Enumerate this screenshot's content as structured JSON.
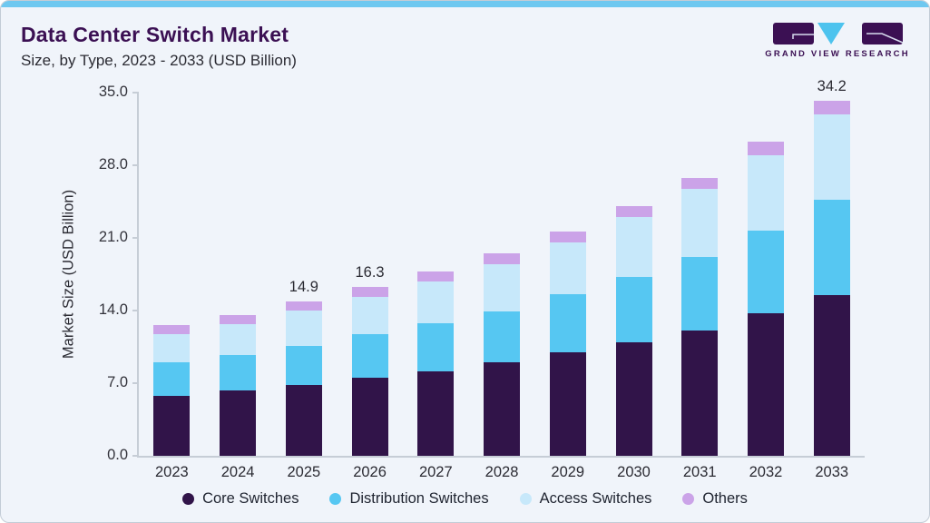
{
  "header": {
    "title": "Data Center Switch Market",
    "subtitle": "Size, by Type, 2023 - 2033 (USD Billion)",
    "logo_text": "GRAND VIEW RESEARCH",
    "logo_name": "grand-view-research-logo"
  },
  "colors": {
    "accent_strip": "#6ec8f0",
    "title_purple": "#3b1053",
    "card_bg": "#f0f4fa",
    "axis_line": "#c6cdd6",
    "text_dark": "#2b2b33",
    "logo_triangle": "#4dc3ee"
  },
  "chart_data": {
    "type": "bar",
    "stacked": true,
    "title": "Data Center Switch Market Size, by Type, 2023 - 2033 (USD Billion)",
    "categories": [
      "2023",
      "2024",
      "2025",
      "2026",
      "2027",
      "2028",
      "2029",
      "2030",
      "2031",
      "2032",
      "2033"
    ],
    "series": [
      {
        "name": "Core Switches",
        "color": "#311449",
        "values": [
          5.8,
          6.3,
          6.8,
          7.5,
          8.1,
          9.0,
          10.0,
          10.9,
          12.1,
          13.7,
          15.5
        ]
      },
      {
        "name": "Distribution Switches",
        "color": "#56c7f2",
        "values": [
          3.2,
          3.4,
          3.8,
          4.2,
          4.7,
          4.9,
          5.6,
          6.3,
          7.1,
          8.0,
          9.2
        ]
      },
      {
        "name": "Access Switches",
        "color": "#c7e8fa",
        "values": [
          2.7,
          3.0,
          3.4,
          3.6,
          4.0,
          4.6,
          5.0,
          5.8,
          6.5,
          7.3,
          8.2
        ]
      },
      {
        "name": "Others",
        "color": "#cba3e8",
        "values": [
          0.9,
          0.9,
          0.9,
          1.0,
          1.0,
          1.0,
          1.0,
          1.1,
          1.1,
          1.3,
          1.3
        ]
      }
    ],
    "totals": [
      12.6,
      13.6,
      14.9,
      16.3,
      17.8,
      19.5,
      21.6,
      24.1,
      26.8,
      30.3,
      34.2
    ],
    "value_labels": {
      "2025": "14.9",
      "2026": "16.3",
      "2033": "34.2"
    },
    "ylabel": "Market Size (USD Billion)",
    "yticks": [
      "0.0",
      "7.0",
      "14.0",
      "21.0",
      "28.0",
      "35.0"
    ],
    "ylim": [
      0,
      35
    ],
    "grid": false,
    "legend_position": "bottom"
  }
}
